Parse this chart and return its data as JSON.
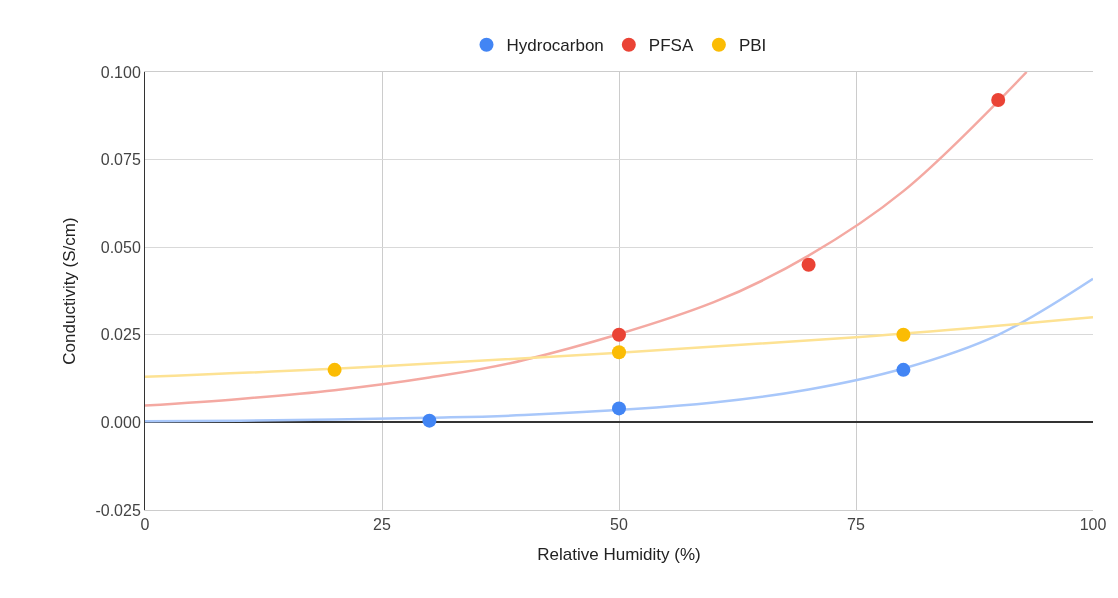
{
  "chart_data": {
    "type": "scatter",
    "xlabel": "Relative Humidity (%)",
    "ylabel": "Conductivity (S/cm)",
    "xlim": [
      0,
      100
    ],
    "xticks": [
      0,
      25,
      50,
      75,
      100
    ],
    "ylim": [
      -0.025,
      0.1
    ],
    "yticks": [
      {
        "value": -0.025,
        "label": "-0.025"
      },
      {
        "value": 0,
        "label": "0.000"
      },
      {
        "value": 0.025,
        "label": "0.025"
      },
      {
        "value": 0.05,
        "label": "0.050"
      },
      {
        "value": 0.075,
        "label": "0.075"
      },
      {
        "value": 0.1,
        "label": "0.100"
      }
    ],
    "grid": true,
    "legend": "top",
    "series": [
      {
        "name": "Hydrocarbon",
        "color": "#4285f4",
        "marker": "circle",
        "x": [
          30,
          50,
          80
        ],
        "values": [
          0.0005,
          0.004,
          0.015
        ]
      },
      {
        "name": "PFSA",
        "color": "#ea4335",
        "marker": "circle",
        "x": [
          50,
          70,
          90
        ],
        "values": [
          0.025,
          0.045,
          0.092
        ]
      },
      {
        "name": "PBI",
        "color": "#fbbc04",
        "marker": "circle",
        "x": [
          20,
          50,
          80
        ],
        "values": [
          0.015,
          0.02,
          0.025
        ]
      },
      {
        "type": "line",
        "color": "#a8c7fa",
        "marker": "none",
        "x": [
          0,
          10,
          20,
          30,
          40,
          60,
          70,
          80,
          90,
          100
        ],
        "values": [
          0.0003,
          0.0005,
          0.0008,
          0.0013,
          0.0021,
          0.0057,
          0.0094,
          0.0154,
          0.025,
          0.041
        ]
      },
      {
        "type": "line",
        "color": "#f4a9a2",
        "marker": "none",
        "x": [
          0,
          10,
          20,
          30,
          40,
          60,
          70,
          80,
          93
        ],
        "values": [
          0.0048,
          0.0067,
          0.0092,
          0.0128,
          0.0178,
          0.0343,
          0.0476,
          0.066,
          0.1
        ]
      },
      {
        "type": "line",
        "color": "#fde293",
        "marker": "none",
        "x": [
          0,
          25,
          75,
          100
        ],
        "values": [
          0.013,
          0.016,
          0.0243,
          0.03
        ]
      }
    ]
  }
}
